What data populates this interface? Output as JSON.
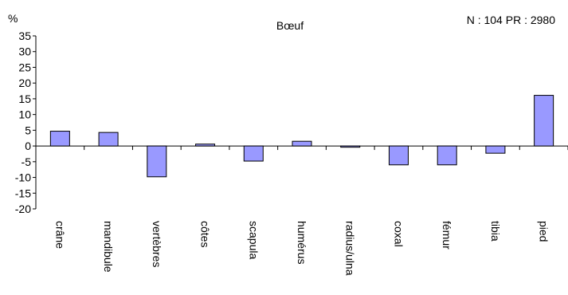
{
  "chart_data": {
    "type": "bar",
    "title": "Bœuf",
    "annotation": "N : 104 PR : 2980",
    "ylabel": "%",
    "xlabel": "",
    "categories": [
      "crâne",
      "mandibule",
      "vertèbres",
      "côtes",
      "scapula",
      "humérus",
      "radius/ulna",
      "coxal",
      "fémur",
      "tibia",
      "pied"
    ],
    "values": [
      4.7,
      4.3,
      -9.8,
      0.6,
      -4.8,
      1.5,
      -0.4,
      -6.0,
      -6.0,
      -2.3,
      16.1
    ],
    "ylim": [
      -20,
      35
    ],
    "yticks": [
      35,
      30,
      25,
      20,
      15,
      10,
      5,
      0,
      -5,
      -10,
      -15,
      -20
    ],
    "grid": false,
    "legend": "none",
    "bar_color": "#9999ff",
    "bar_edge_color": "#000000"
  }
}
